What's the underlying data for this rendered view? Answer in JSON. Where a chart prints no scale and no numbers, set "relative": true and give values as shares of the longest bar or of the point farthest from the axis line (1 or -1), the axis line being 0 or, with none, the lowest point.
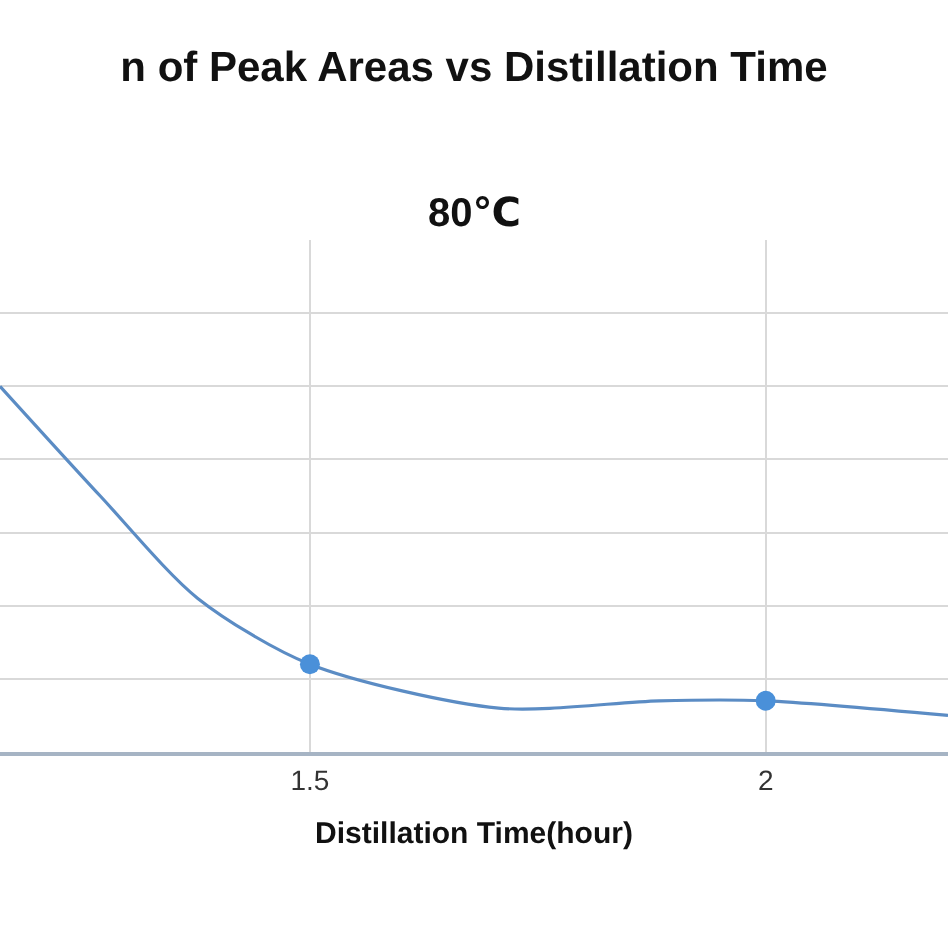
{
  "chart_data": {
    "type": "line",
    "title": "n of Peak Areas vs Distillation Time",
    "subtitle": "80℃",
    "xlabel": "Distillation Time(hour)",
    "relative": true,
    "xlim": [
      1.16,
      2.2
    ],
    "xticks": [
      1.5,
      2
    ],
    "grid": true,
    "series": [
      {
        "marker": "none",
        "color": "#5b8cc4",
        "x": [
          1.16,
          1.27,
          1.377,
          1.5,
          1.707,
          1.883,
          2,
          2.2
        ],
        "values": [
          1,
          0.7,
          0.42,
          0.24,
          0.12,
          0.14,
          0.14,
          0.1
        ]
      },
      {
        "type": "scatter",
        "marker": "circle",
        "color": "#4a90d9",
        "x": [
          1.5,
          2
        ],
        "values": [
          0.24,
          0.14
        ]
      }
    ]
  }
}
